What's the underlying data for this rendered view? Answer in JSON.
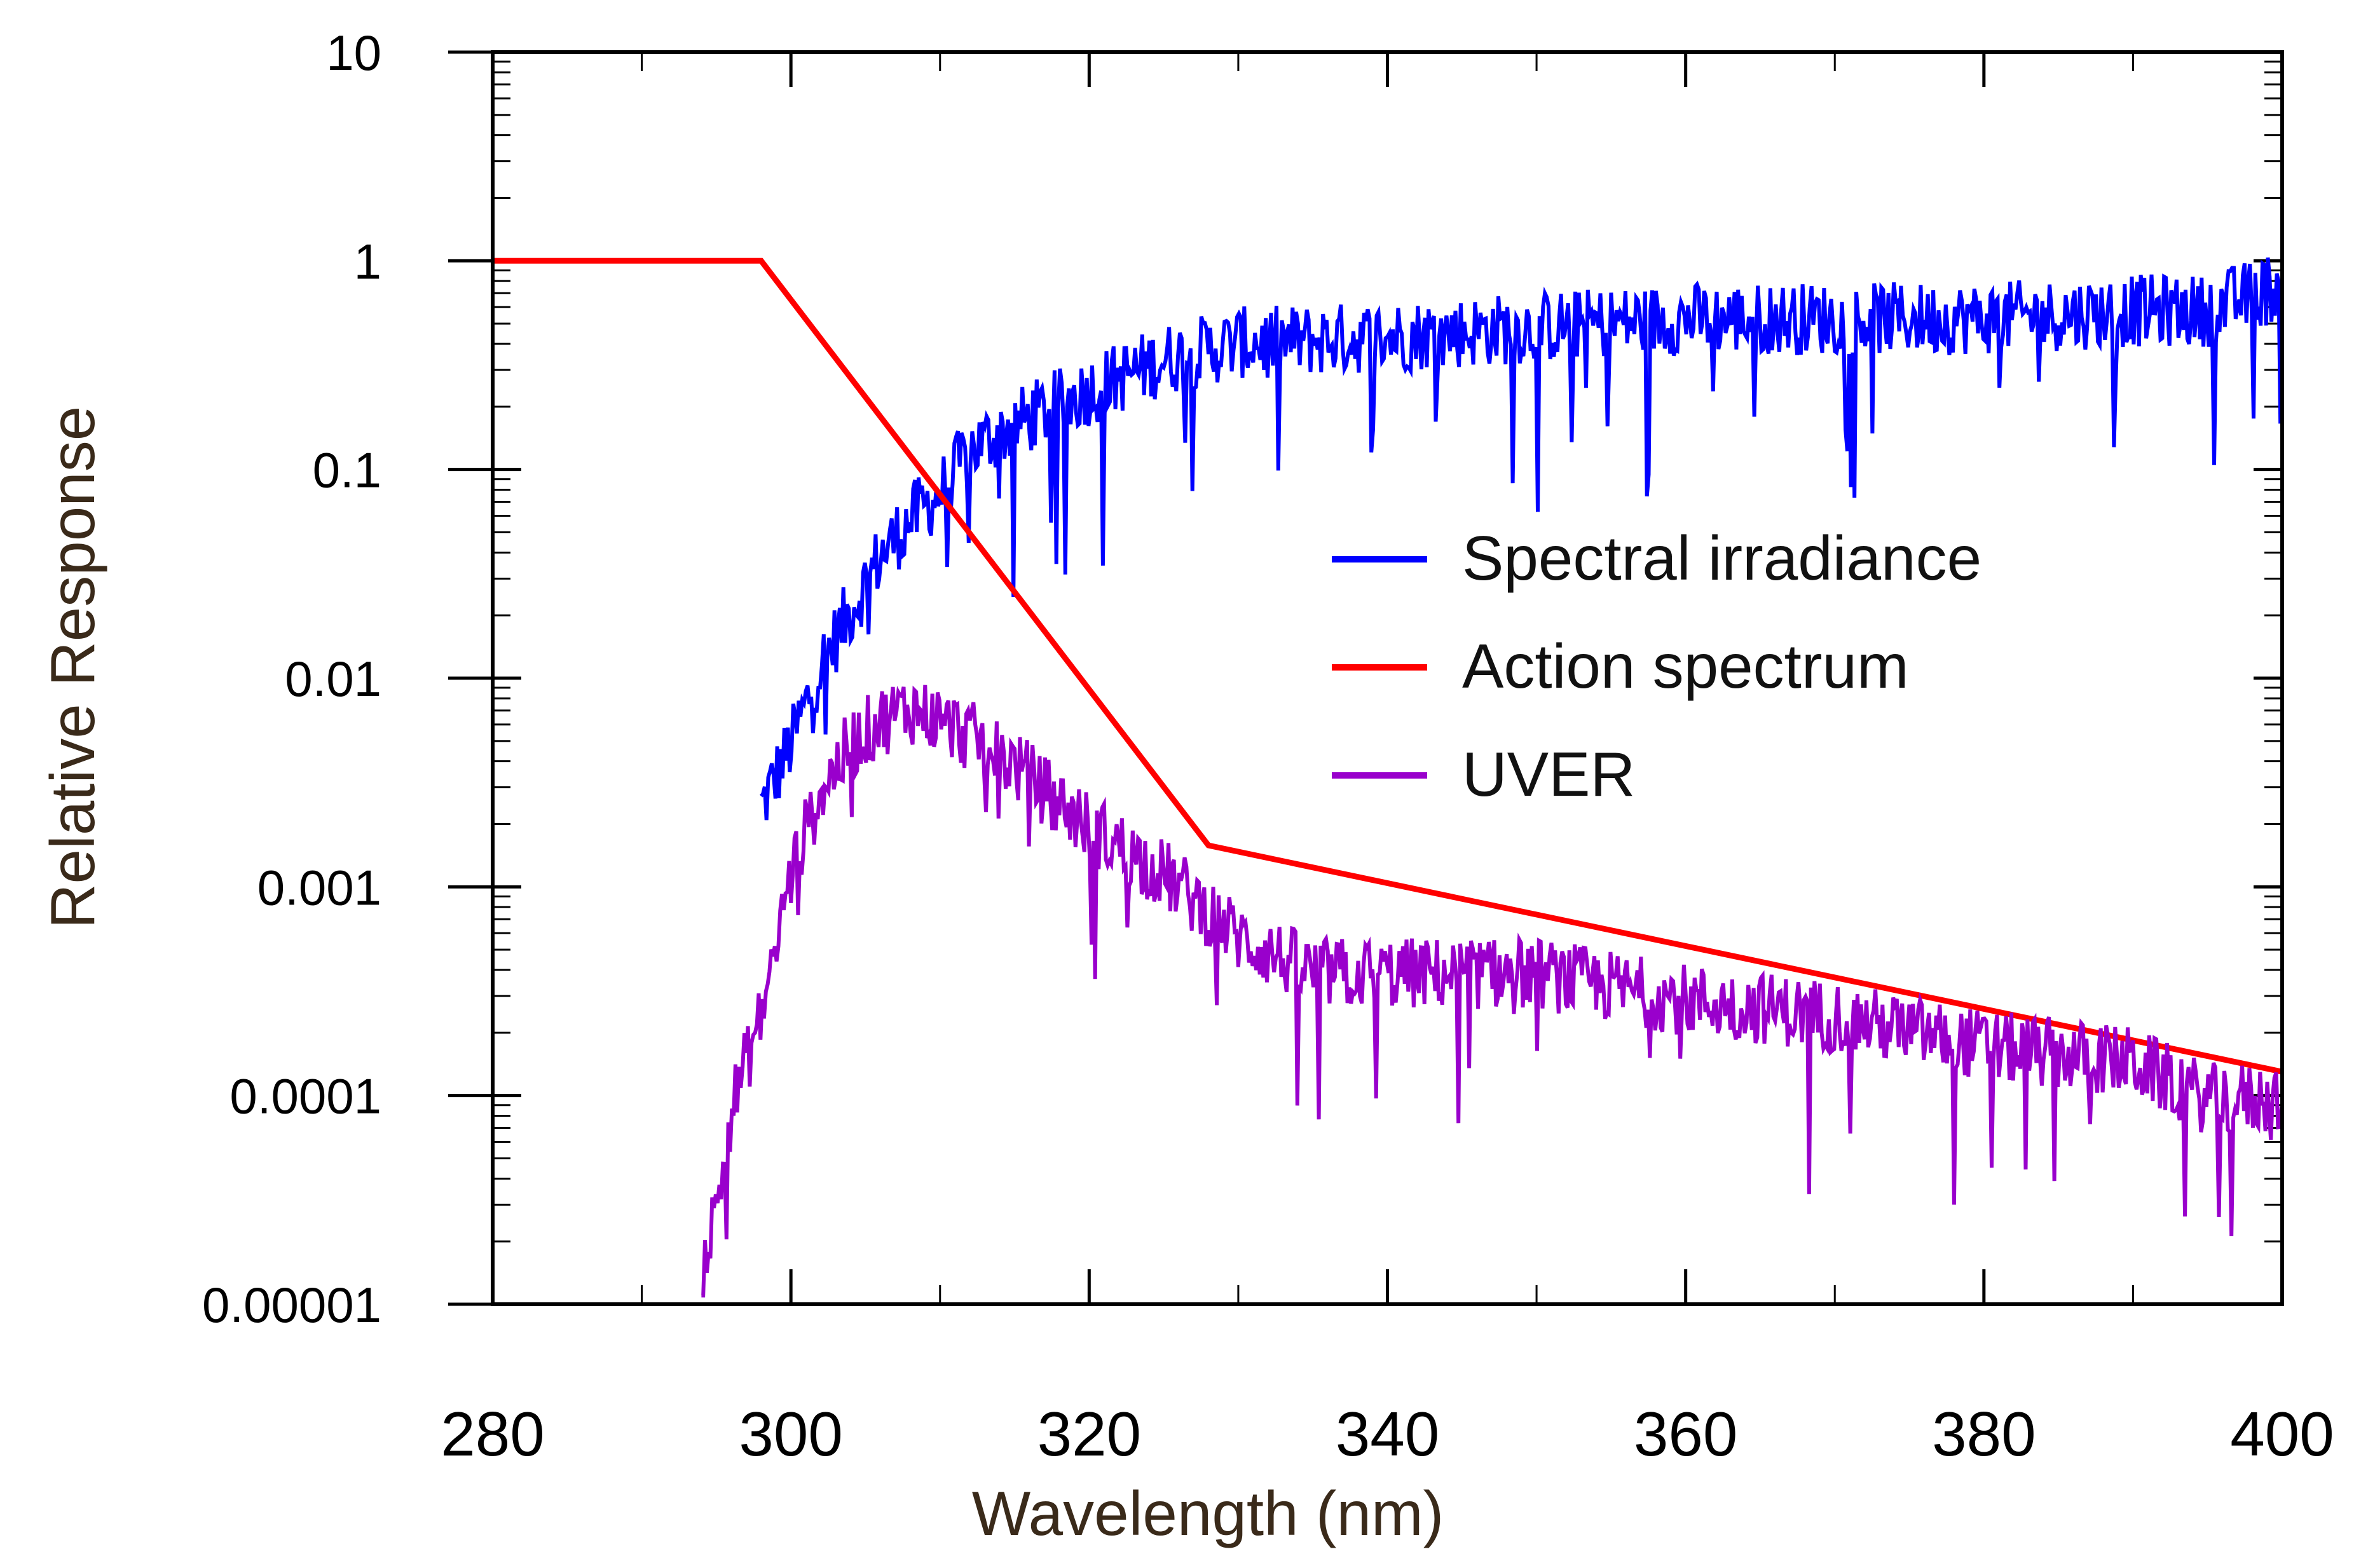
{
  "chart_data": {
    "type": "line",
    "yscale": "log",
    "title": "",
    "xlabel": "Wavelength (nm)",
    "ylabel": "Relative Response",
    "xlim": [
      280,
      400
    ],
    "ylim": [
      1e-05,
      10
    ],
    "x_ticks": [
      280,
      300,
      320,
      340,
      360,
      380,
      400
    ],
    "x_tick_labels": [
      "280",
      "300",
      "320",
      "340",
      "360",
      "380",
      "400"
    ],
    "y_ticks": [
      1e-05,
      0.0001,
      0.001,
      0.01,
      0.1,
      1,
      10
    ],
    "y_tick_labels": [
      "0.00001",
      "0.0001",
      "0.001",
      "0.01",
      "0.1",
      "1",
      "10"
    ],
    "legend_position": "center-right",
    "series": [
      {
        "name": "Spectral irradiance",
        "color": "#0000ff",
        "style": "noisy",
        "x": [
          298,
          300,
          302,
          304,
          306,
          308,
          310,
          312,
          315,
          320,
          325,
          330,
          340,
          350,
          360,
          370,
          380,
          390,
          395,
          400
        ],
        "y": [
          0.0025,
          0.005,
          0.012,
          0.022,
          0.04,
          0.06,
          0.08,
          0.13,
          0.17,
          0.25,
          0.35,
          0.42,
          0.45,
          0.5,
          0.55,
          0.55,
          0.55,
          0.6,
          0.6,
          0.8
        ]
      },
      {
        "name": "Action spectrum",
        "color": "#ff0000",
        "style": "smooth",
        "x": [
          280,
          298,
          328,
          400
        ],
        "y": [
          1,
          1,
          0.00158,
          0.00013
        ]
      },
      {
        "name": "UVER",
        "color": "#9900cc",
        "style": "noisy",
        "x": [
          294,
          295,
          296,
          298,
          300,
          302,
          304,
          306,
          308,
          310,
          312,
          315,
          320,
          325,
          330,
          335,
          340,
          350,
          360,
          370,
          380,
          390,
          395,
          400
        ],
        "y": [
          1.5e-05,
          3e-05,
          9e-05,
          0.00025,
          0.0012,
          0.003,
          0.005,
          0.0065,
          0.0075,
          0.0065,
          0.0055,
          0.004,
          0.002,
          0.0012,
          0.0006,
          0.0004,
          0.0004,
          0.0004,
          0.0003,
          0.00025,
          0.00018,
          0.00015,
          0.0001,
          0.0001
        ]
      }
    ]
  }
}
